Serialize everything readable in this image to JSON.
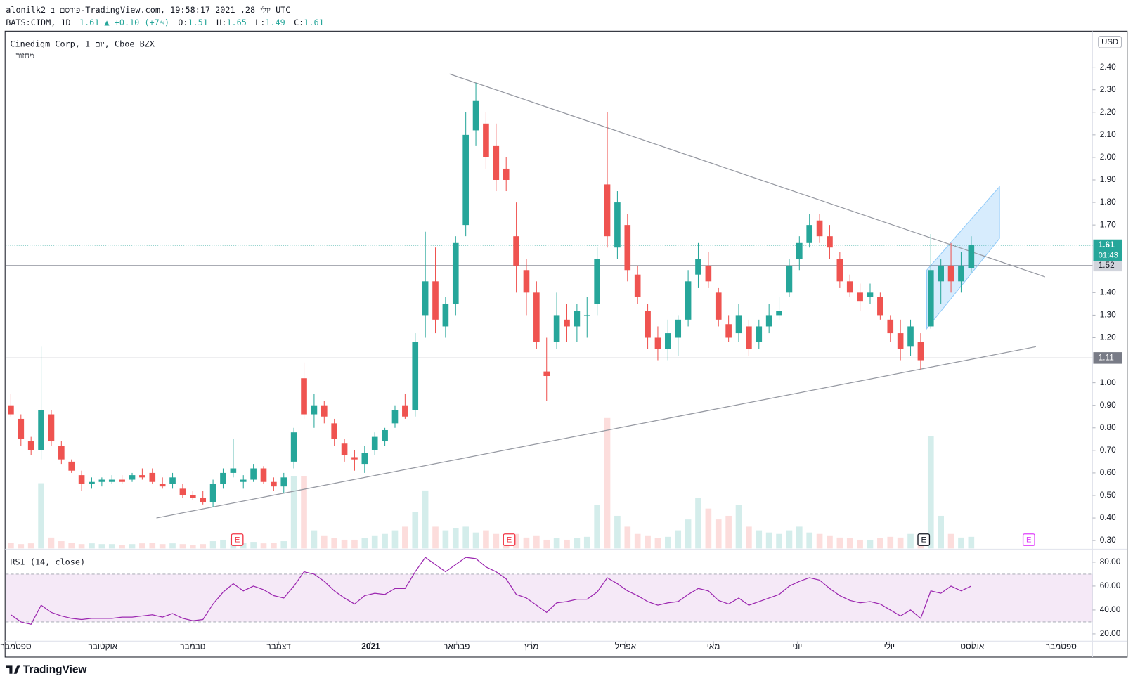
{
  "header": {
    "line1": "alonilk2 פורסם ב-TradingView.com, יולי 28, 2021 19:58:17 UTC",
    "symbol": "BATS:CIDM, 1D",
    "change": "+0.10 (+7%)",
    "ohlc_labels": [
      "O:",
      "H:",
      "L:",
      "C:"
    ]
  },
  "footer": "TradingView",
  "chart_data": {
    "type": "candlestick",
    "title": "Cinedigm Corp, 1 יום, Cboe BZX",
    "volume_label": "מחזור",
    "currency": "USD",
    "countdown": "01:43",
    "up_color": "#26a69a",
    "down_color": "#ef5350",
    "grid": false,
    "candles": [
      [
        0.9,
        0.95,
        0.85,
        0.86
      ],
      [
        0.84,
        0.86,
        0.72,
        0.75
      ],
      [
        0.74,
        0.76,
        0.68,
        0.7
      ],
      [
        0.7,
        1.16,
        0.66,
        0.88
      ],
      [
        0.86,
        0.88,
        0.72,
        0.74
      ],
      [
        0.72,
        0.74,
        0.64,
        0.66
      ],
      [
        0.65,
        0.66,
        0.6,
        0.61
      ],
      [
        0.59,
        0.61,
        0.52,
        0.55
      ],
      [
        0.55,
        0.58,
        0.53,
        0.56
      ],
      [
        0.56,
        0.58,
        0.54,
        0.57
      ],
      [
        0.56,
        0.59,
        0.55,
        0.57
      ],
      [
        0.57,
        0.59,
        0.55,
        0.56
      ],
      [
        0.57,
        0.6,
        0.56,
        0.59
      ],
      [
        0.59,
        0.62,
        0.57,
        0.58
      ],
      [
        0.6,
        0.62,
        0.55,
        0.56
      ],
      [
        0.55,
        0.58,
        0.53,
        0.54
      ],
      [
        0.55,
        0.6,
        0.53,
        0.58
      ],
      [
        0.53,
        0.55,
        0.49,
        0.5
      ],
      [
        0.5,
        0.52,
        0.48,
        0.49
      ],
      [
        0.49,
        0.52,
        0.46,
        0.47
      ],
      [
        0.47,
        0.57,
        0.45,
        0.55
      ],
      [
        0.55,
        0.62,
        0.53,
        0.6
      ],
      [
        0.6,
        0.75,
        0.58,
        0.62
      ],
      [
        0.56,
        0.59,
        0.53,
        0.57
      ],
      [
        0.57,
        0.64,
        0.56,
        0.62
      ],
      [
        0.62,
        0.63,
        0.55,
        0.56
      ],
      [
        0.56,
        0.58,
        0.52,
        0.54
      ],
      [
        0.54,
        0.6,
        0.51,
        0.58
      ],
      [
        0.65,
        0.8,
        0.62,
        0.78
      ],
      [
        1.02,
        1.09,
        0.84,
        0.86
      ],
      [
        0.86,
        0.95,
        0.8,
        0.9
      ],
      [
        0.9,
        0.92,
        0.82,
        0.85
      ],
      [
        0.82,
        0.84,
        0.72,
        0.75
      ],
      [
        0.73,
        0.75,
        0.65,
        0.68
      ],
      [
        0.67,
        0.7,
        0.61,
        0.66
      ],
      [
        0.64,
        0.72,
        0.6,
        0.69
      ],
      [
        0.7,
        0.78,
        0.68,
        0.76
      ],
      [
        0.74,
        0.8,
        0.72,
        0.79
      ],
      [
        0.82,
        0.9,
        0.8,
        0.88
      ],
      [
        0.9,
        0.95,
        0.84,
        0.85
      ],
      [
        0.88,
        1.22,
        0.85,
        1.18
      ],
      [
        1.3,
        1.67,
        1.2,
        1.45
      ],
      [
        1.45,
        1.6,
        1.22,
        1.28
      ],
      [
        1.25,
        1.38,
        1.2,
        1.35
      ],
      [
        1.35,
        1.65,
        1.3,
        1.62
      ],
      [
        1.7,
        2.2,
        1.65,
        2.1
      ],
      [
        2.12,
        2.33,
        2.05,
        2.25
      ],
      [
        2.15,
        2.2,
        1.95,
        2.0
      ],
      [
        2.05,
        2.15,
        1.85,
        1.9
      ],
      [
        1.95,
        2.0,
        1.85,
        1.9
      ],
      [
        1.65,
        1.8,
        1.4,
        1.52
      ],
      [
        1.5,
        1.55,
        1.3,
        1.4
      ],
      [
        1.4,
        1.45,
        1.15,
        1.18
      ],
      [
        1.05,
        1.2,
        0.92,
        1.03
      ],
      [
        1.18,
        1.4,
        1.15,
        1.3
      ],
      [
        1.28,
        1.35,
        1.18,
        1.25
      ],
      [
        1.25,
        1.35,
        1.18,
        1.32
      ],
      [
        1.3,
        1.38,
        1.2,
        1.3
      ],
      [
        1.35,
        1.6,
        1.3,
        1.55
      ],
      [
        1.88,
        2.2,
        1.6,
        1.65
      ],
      [
        1.6,
        1.85,
        1.55,
        1.8
      ],
      [
        1.7,
        1.75,
        1.45,
        1.5
      ],
      [
        1.48,
        1.52,
        1.35,
        1.38
      ],
      [
        1.32,
        1.35,
        1.15,
        1.2
      ],
      [
        1.2,
        1.25,
        1.1,
        1.15
      ],
      [
        1.15,
        1.28,
        1.1,
        1.22
      ],
      [
        1.2,
        1.3,
        1.12,
        1.28
      ],
      [
        1.28,
        1.5,
        1.25,
        1.45
      ],
      [
        1.48,
        1.62,
        1.42,
        1.55
      ],
      [
        1.52,
        1.58,
        1.42,
        1.45
      ],
      [
        1.4,
        1.42,
        1.25,
        1.28
      ],
      [
        1.26,
        1.3,
        1.18,
        1.2
      ],
      [
        1.22,
        1.35,
        1.18,
        1.3
      ],
      [
        1.25,
        1.28,
        1.12,
        1.15
      ],
      [
        1.18,
        1.28,
        1.15,
        1.25
      ],
      [
        1.25,
        1.35,
        1.22,
        1.3
      ],
      [
        1.3,
        1.38,
        1.28,
        1.32
      ],
      [
        1.4,
        1.55,
        1.38,
        1.52
      ],
      [
        1.55,
        1.65,
        1.5,
        1.62
      ],
      [
        1.62,
        1.75,
        1.6,
        1.7
      ],
      [
        1.72,
        1.75,
        1.62,
        1.65
      ],
      [
        1.65,
        1.7,
        1.55,
        1.6
      ],
      [
        1.55,
        1.58,
        1.42,
        1.45
      ],
      [
        1.45,
        1.48,
        1.38,
        1.4
      ],
      [
        1.4,
        1.44,
        1.32,
        1.36
      ],
      [
        1.38,
        1.44,
        1.35,
        1.4
      ],
      [
        1.38,
        1.4,
        1.28,
        1.3
      ],
      [
        1.28,
        1.3,
        1.18,
        1.22
      ],
      [
        1.22,
        1.28,
        1.1,
        1.15
      ],
      [
        1.16,
        1.28,
        1.12,
        1.25
      ],
      [
        1.18,
        1.22,
        1.06,
        1.1
      ],
      [
        1.25,
        1.66,
        1.24,
        1.5
      ],
      [
        1.45,
        1.55,
        1.35,
        1.52
      ],
      [
        1.52,
        1.62,
        1.4,
        1.45
      ],
      [
        1.45,
        1.58,
        1.4,
        1.52
      ],
      [
        1.51,
        1.65,
        1.49,
        1.61
      ]
    ],
    "volume": [
      8,
      6,
      7,
      90,
      15,
      10,
      8,
      6,
      7,
      6,
      6,
      5,
      6,
      7,
      8,
      6,
      7,
      6,
      5,
      6,
      10,
      12,
      14,
      8,
      9,
      7,
      8,
      10,
      100,
      100,
      25,
      18,
      14,
      12,
      12,
      14,
      18,
      20,
      25,
      30,
      50,
      80,
      30,
      25,
      28,
      30,
      22,
      25,
      20,
      18,
      20,
      15,
      18,
      12,
      14,
      12,
      14,
      16,
      60,
      180,
      45,
      30,
      20,
      18,
      14,
      16,
      25,
      40,
      70,
      55,
      40,
      45,
      60,
      30,
      25,
      22,
      20,
      25,
      30,
      22,
      20,
      18,
      15,
      14,
      12,
      12,
      14,
      16,
      15,
      20,
      18,
      155,
      45,
      20,
      15,
      16
    ],
    "xlim": [
      -0.5,
      107
    ],
    "xticks": [
      {
        "value": 0.5,
        "label": "ספטמבר"
      },
      {
        "value": 9.1,
        "label": "אוקטובר"
      },
      {
        "value": 18,
        "label": "נובמבר"
      },
      {
        "value": 26.5,
        "label": "דצמבר"
      },
      {
        "value": 35.6,
        "label": "2021"
      },
      {
        "value": 44.1,
        "label": "פברואר"
      },
      {
        "value": 51.5,
        "label": "מרץ"
      },
      {
        "value": 60.8,
        "label": "אפריל"
      },
      {
        "value": 69.5,
        "label": "מאי"
      },
      {
        "value": 77.8,
        "label": "יוני"
      },
      {
        "value": 86.9,
        "label": "יולי"
      },
      {
        "value": 95.1,
        "label": "אוגוסט"
      },
      {
        "value": 103.9,
        "label": "ספטמבר"
      }
    ],
    "ylim": [
      0.265,
      2.56
    ],
    "yticks": [
      {
        "value": 2.4,
        "label": "2.40"
      },
      {
        "value": 2.3,
        "label": "2.30"
      },
      {
        "value": 2.2,
        "label": "2.20"
      },
      {
        "value": 2.1,
        "label": "2.10"
      },
      {
        "value": 2.0,
        "label": "2.00"
      },
      {
        "value": 1.9,
        "label": "1.90"
      },
      {
        "value": 1.8,
        "label": "1.80"
      },
      {
        "value": 1.7,
        "label": "1.70"
      },
      {
        "value": 1.4,
        "label": "1.40"
      },
      {
        "value": 1.3,
        "label": "1.30"
      },
      {
        "value": 1.2,
        "label": "1.20"
      },
      {
        "value": 1.0,
        "label": "1.00"
      },
      {
        "value": 0.9,
        "label": "0.90"
      },
      {
        "value": 0.8,
        "label": "0.80"
      },
      {
        "value": 0.7,
        "label": "0.70"
      },
      {
        "value": 0.6,
        "label": "0.60"
      },
      {
        "value": 0.5,
        "label": "0.50"
      },
      {
        "value": 0.4,
        "label": "0.40"
      },
      {
        "value": 0.3,
        "label": "0.30"
      }
    ],
    "hlines": [
      1.52,
      1.11
    ],
    "trendlines": [
      [
        [
          43.4,
          2.37
        ],
        [
          102.3,
          1.47
        ]
      ],
      [
        [
          14.4,
          0.4
        ],
        [
          101.4,
          1.16
        ]
      ]
    ],
    "channel": [
      [
        90.6,
        1.5
      ],
      [
        97.8,
        1.87
      ],
      [
        97.8,
        1.64
      ],
      [
        90.6,
        1.24
      ]
    ],
    "earnings": [
      {
        "index": 22.4,
        "label": "E",
        "color": "#f23645"
      },
      {
        "index": 49.3,
        "label": "E",
        "color": "#f23645"
      },
      {
        "index": 90.3,
        "label": "E",
        "color": "#131722"
      },
      {
        "index": 100.7,
        "label": "E",
        "color": "#e040fb"
      }
    ],
    "rsi": {
      "title": "RSI (14, close)",
      "color": "#9c27b0",
      "band": [
        30,
        70
      ],
      "ylim": [
        13.9,
        89.7
      ],
      "yticks": [
        {
          "value": 80,
          "label": "80.00"
        },
        {
          "value": 60,
          "label": "60.00"
        },
        {
          "value": 40,
          "label": "40.00"
        },
        {
          "value": 20,
          "label": "20.00"
        }
      ],
      "values": [
        36,
        30,
        28,
        44,
        38,
        35,
        33,
        32,
        33,
        33,
        33,
        34,
        34,
        35,
        36,
        34,
        37,
        33,
        31,
        32,
        45,
        55,
        62,
        56,
        60,
        57,
        52,
        50,
        60,
        72,
        70,
        64,
        56,
        50,
        45,
        52,
        54,
        53,
        58,
        58,
        72,
        84,
        78,
        72,
        78,
        84,
        83,
        76,
        72,
        66,
        53,
        50,
        44,
        38,
        46,
        47,
        49,
        49,
        55,
        67,
        62,
        56,
        52,
        47,
        44,
        46,
        47,
        53,
        58,
        56,
        48,
        45,
        50,
        44,
        47,
        50,
        53,
        60,
        64,
        67,
        65,
        58,
        52,
        48,
        46,
        47,
        45,
        40,
        35,
        40,
        33,
        56,
        54,
        60,
        56,
        60
      ]
    }
  }
}
